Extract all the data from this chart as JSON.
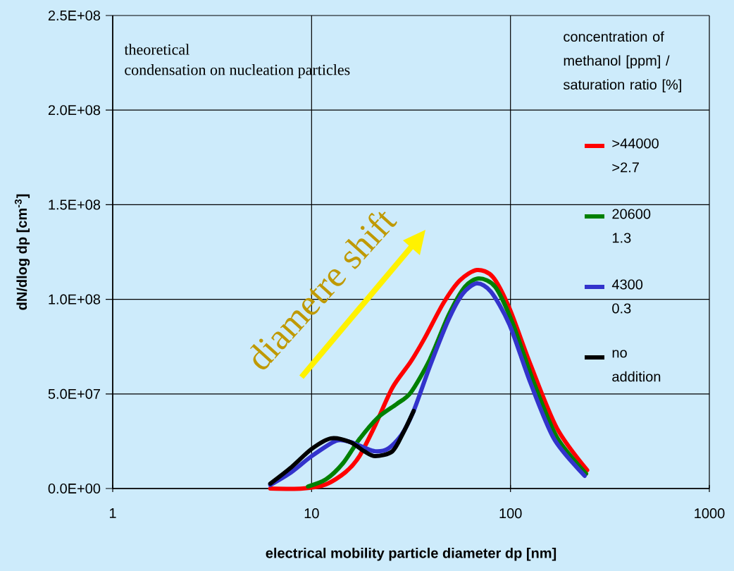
{
  "chart_data": {
    "type": "line",
    "xlabel": "electrical mobility particle diameter dp [nm]",
    "ylabel": "dN/dlog dp [cm$^{-3}$]",
    "legend_title": "concentration of methanol [ppm] / saturation ratio [%]",
    "annotations": [
      "theoretical",
      "condensation on nucleation particles",
      "diametre shift"
    ],
    "log": "x",
    "grid": true,
    "legend": "right",
    "xlim": [
      1,
      1000
    ],
    "xticks": [
      1,
      10,
      100,
      1000
    ],
    "ylim": [
      0,
      250000000
    ],
    "yticks": [
      {
        "value": 0,
        "label": "0.0E+00"
      },
      {
        "value": 50000000,
        "label": "5.0E+07"
      },
      {
        "value": 100000000,
        "label": "1.0E+08"
      },
      {
        "value": 150000000,
        "label": "1.5E+08"
      },
      {
        "value": 200000000,
        "label": "2.0E+08"
      },
      {
        "value": 250000000,
        "label": "2.5E+08"
      }
    ],
    "series": [
      {
        "name": ">44000 >2.7",
        "color": "#ff0000",
        "x": [
          6.2,
          9.0,
          11.8,
          14.8,
          17.4,
          20.9,
          25.5,
          31.5,
          37.0,
          46.0,
          55.6,
          67.8,
          81.6,
          98.7,
          126,
          171,
          243
        ],
        "values": [
          0,
          0,
          2200000,
          8600000,
          17100000,
          33500000,
          53300000,
          67000000,
          79400000,
          98000000,
          110000000,
          115500000,
          111800000,
          95400000,
          65600000,
          32000000,
          9700000
        ]
      },
      {
        "name": "20600 1.3",
        "color": "#008000",
        "x": [
          9.6,
          11.8,
          14.4,
          17.4,
          21.6,
          26.8,
          31.5,
          39.3,
          48.9,
          59.0,
          69.5,
          83.8,
          102,
          130,
          171,
          240
        ],
        "values": [
          1100000,
          4800000,
          13400000,
          26100000,
          37600000,
          44700000,
          50700000,
          68200000,
          91700000,
          106600000,
          111000000,
          106600000,
          88000000,
          57000000,
          27200000,
          7800000
        ]
      },
      {
        "name": "4300 0.3",
        "color": "#3333cc",
        "x": [
          6.2,
          7.9,
          10,
          13.3,
          15.6,
          18.4,
          20.9,
          24.1,
          28.3,
          32.6,
          39.3,
          48.9,
          57.6,
          67.8,
          79.8,
          98.7,
          126,
          166,
          236
        ],
        "values": [
          1900000,
          8600000,
          17100000,
          25300000,
          24600000,
          21600000,
          19700000,
          20900000,
          28300000,
          41000000,
          64500000,
          89400000,
          103000000,
          108400000,
          104000000,
          86800000,
          55900000,
          26100000,
          6700000
        ]
      },
      {
        "name": "no addition",
        "color": "#000000",
        "x": [
          6.2,
          7.9,
          10,
          12.5,
          15.6,
          18.4,
          20.9,
          25.5,
          29.0,
          32.6
        ],
        "values": [
          2600000,
          11200000,
          20900000,
          26500000,
          24600000,
          19700000,
          17100000,
          19700000,
          29800000,
          41000000
        ]
      }
    ]
  }
}
